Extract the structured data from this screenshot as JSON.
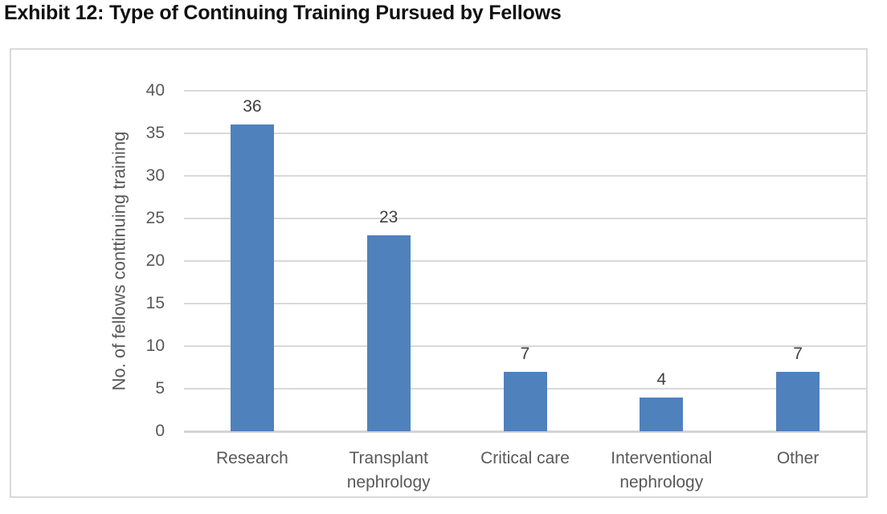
{
  "title": "Exhibit 12: Type of Continuing Training Pursued by Fellows",
  "chart_data": {
    "type": "bar",
    "categories": [
      "Research",
      "Transplant nephrology",
      "Critical care",
      "Interventional nephrology",
      "Other"
    ],
    "values": [
      36,
      23,
      7,
      4,
      7
    ],
    "title": "",
    "xlabel": "",
    "ylabel": "No. of fellows conttinuing training",
    "ylim": [
      0,
      40
    ],
    "yticks": [
      0,
      5,
      10,
      15,
      20,
      25,
      30,
      35,
      40
    ],
    "grid": "horizontal-only",
    "legend": "none",
    "data_labels": "above-bars",
    "colors": {
      "bar": "#4f81bd",
      "gridline": "#d9d9d9",
      "axis_line": "#d3d3d3",
      "tick_label_text": "#595959",
      "value_label_text": "#3f3f3f",
      "title_text": "#111111",
      "frame_border": "#d9d9d9"
    }
  }
}
